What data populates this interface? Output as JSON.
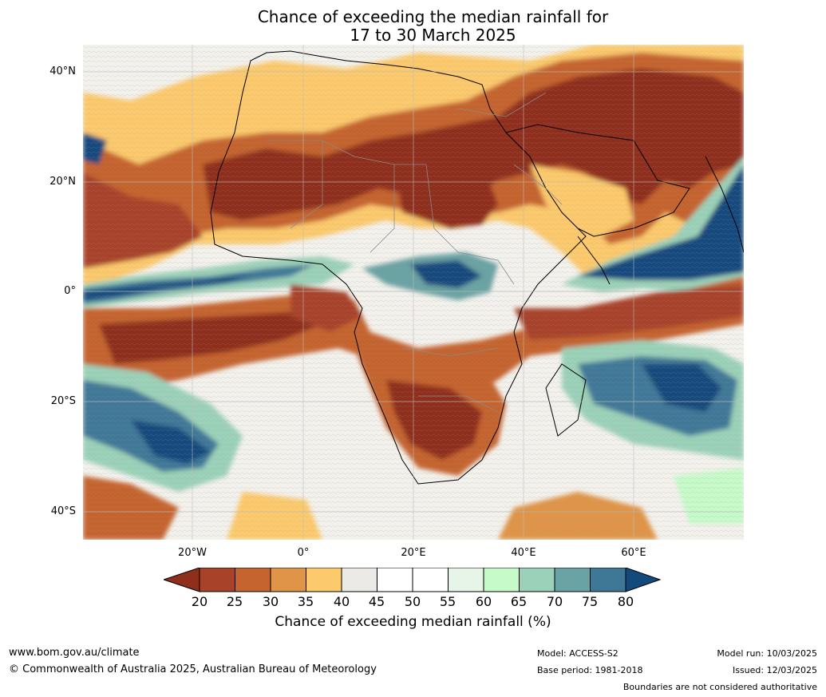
{
  "title": {
    "line1": "Chance of exceeding the median rainfall for",
    "line2": "17 to 30 March 2025"
  },
  "map": {
    "latitude_labels": [
      "40°N",
      "20°N",
      "0°",
      "20°S",
      "40°S"
    ],
    "longitude_labels": [
      "20°W",
      "0°",
      "20°E",
      "40°E",
      "60°E"
    ]
  },
  "colorbar": {
    "ticks": [
      "20",
      "25",
      "30",
      "35",
      "40",
      "45",
      "50",
      "55",
      "60",
      "65",
      "70",
      "75",
      "80"
    ],
    "colors": [
      "#8f2e1b",
      "#a8432a",
      "#c5642f",
      "#df9447",
      "#fcc96c",
      "#eceae6",
      "#ffffff",
      "#ffffff",
      "#e6f5e7",
      "#c6fac9",
      "#9bd1b8",
      "#6aa3a3",
      "#3f7897",
      "#124a7d"
    ],
    "label": "Chance of exceeding median rainfall (%)"
  },
  "footer": {
    "website": "www.bom.gov.au/climate",
    "copyright": "© Commonwealth of Australia 2025, Australian Bureau of Meteorology",
    "model": "Model: ACCESS-S2",
    "base_period": "Base period: 1981-2018",
    "model_run": "Model run: 10/03/2025",
    "issued": "Issued: 12/03/2025",
    "disclaimer": "Boundaries are not considered authoritative"
  }
}
